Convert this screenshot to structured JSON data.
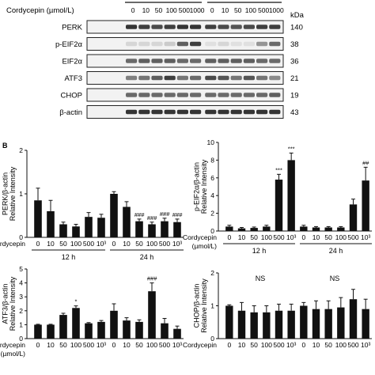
{
  "panel_a": {
    "treatment_label": "Cordycepin (µmol/L)",
    "doses": [
      "0",
      "10",
      "50",
      "100",
      "500",
      "1000",
      "0",
      "10",
      "50",
      "100",
      "500",
      "1000"
    ],
    "kda_label": "kDa",
    "blots": [
      {
        "name": "PERK",
        "kda": "140",
        "intensity": [
          0.85,
          0.8,
          0.75,
          0.8,
          0.85,
          0.85,
          0.8,
          0.75,
          0.7,
          0.75,
          0.8,
          0.8
        ]
      },
      {
        "name": "p-EIF2α",
        "kda": "38",
        "intensity": [
          0.1,
          0.1,
          0.1,
          0.15,
          0.65,
          0.8,
          0.05,
          0.1,
          0.05,
          0.05,
          0.4,
          0.6
        ]
      },
      {
        "name": "EIF2α",
        "kda": "36",
        "intensity": [
          0.6,
          0.65,
          0.65,
          0.65,
          0.6,
          0.6,
          0.65,
          0.65,
          0.65,
          0.65,
          0.6,
          0.6
        ]
      },
      {
        "name": "ATF3",
        "kda": "21",
        "intensity": [
          0.5,
          0.55,
          0.65,
          0.8,
          0.55,
          0.6,
          0.75,
          0.7,
          0.55,
          0.7,
          0.55,
          0.45
        ]
      },
      {
        "name": "CHOP",
        "kda": "19",
        "intensity": [
          0.6,
          0.6,
          0.6,
          0.6,
          0.6,
          0.6,
          0.6,
          0.6,
          0.6,
          0.6,
          0.6,
          0.65
        ]
      },
      {
        "name": "β-actin",
        "kda": "43",
        "intensity": [
          0.85,
          0.85,
          0.85,
          0.85,
          0.85,
          0.85,
          0.85,
          0.85,
          0.85,
          0.85,
          0.85,
          0.85
        ]
      }
    ]
  },
  "panel_b_label": "B",
  "chart_data": [
    {
      "type": "bar",
      "ylabel": "PERK/β-actin Relative Intensity",
      "ylim": [
        0,
        2
      ],
      "yticks": [
        "0",
        "1",
        "2"
      ],
      "categories": [
        "0",
        "10",
        "50",
        "100",
        "500",
        "10³",
        "0",
        "10",
        "50",
        "100",
        "500",
        "10³"
      ],
      "values": [
        0.85,
        0.6,
        0.3,
        0.25,
        0.47,
        0.45,
        1.0,
        0.7,
        0.37,
        0.3,
        0.37,
        0.35
      ],
      "errors": [
        0.28,
        0.25,
        0.05,
        0.05,
        0.1,
        0.08,
        0.05,
        0.12,
        0.05,
        0.05,
        0.07,
        0.07
      ],
      "annotations": [
        "",
        "",
        "",
        "",
        "",
        "",
        "",
        "",
        "###",
        "###",
        "###",
        "###"
      ],
      "cat_label": "Cordycepin",
      "cat_unit": "",
      "groups": [
        "12 h",
        "24 h"
      ]
    },
    {
      "type": "bar",
      "ylabel": "p-EIF2α/β-actin Relative Intensity",
      "ylim": [
        0,
        10
      ],
      "yticks": [
        "0",
        "2",
        "4",
        "6",
        "8",
        "10"
      ],
      "categories": [
        "0",
        "10",
        "50",
        "100",
        "500",
        "10³",
        "0",
        "10",
        "50",
        "100",
        "500",
        "10³"
      ],
      "values": [
        0.5,
        0.3,
        0.35,
        0.5,
        5.8,
        8.0,
        0.5,
        0.4,
        0.4,
        0.4,
        3.0,
        5.7
      ],
      "errors": [
        0.15,
        0.1,
        0.1,
        0.15,
        0.6,
        0.8,
        0.15,
        0.1,
        0.1,
        0.1,
        0.6,
        1.5
      ],
      "annotations": [
        "",
        "",
        "",
        "",
        "***",
        "***",
        "",
        "",
        "",
        "",
        "",
        "##"
      ],
      "cat_label": "Cordycepin",
      "cat_unit": "(µmol/L)",
      "groups": [
        "12 h",
        "24 h"
      ]
    },
    {
      "type": "bar",
      "ylabel": "ATF3/β-actin Relative Intensity",
      "ylim": [
        0,
        5
      ],
      "yticks": [
        "0",
        "1",
        "2",
        "3",
        "4",
        "5"
      ],
      "categories": [
        "0",
        "10",
        "50",
        "100",
        "500",
        "10³",
        "0",
        "10",
        "50",
        "100",
        "500",
        "10³"
      ],
      "values": [
        1.0,
        1.0,
        1.7,
        2.2,
        1.1,
        1.2,
        2.0,
        1.3,
        1.2,
        3.4,
        1.1,
        0.7
      ],
      "errors": [
        0.03,
        0.03,
        0.12,
        0.15,
        0.05,
        0.1,
        0.5,
        0.2,
        0.15,
        0.6,
        0.35,
        0.2
      ],
      "annotations": [
        "",
        "",
        "",
        "*",
        "",
        "",
        "",
        "",
        "",
        "###",
        "",
        ""
      ],
      "cat_label": "Cordycepin",
      "cat_unit": "(µmol/L)",
      "groups": []
    },
    {
      "type": "bar",
      "ylabel": "CHOP/β-actin Relative Intensity",
      "ylim": [
        0,
        2
      ],
      "yticks": [
        "0",
        "1",
        "2"
      ],
      "categories": [
        "0",
        "10",
        "50",
        "100",
        "500",
        "10³",
        "0",
        "10",
        "50",
        "100",
        "500",
        "10³"
      ],
      "values": [
        1.0,
        0.85,
        0.8,
        0.8,
        0.85,
        0.85,
        1.0,
        0.9,
        0.9,
        0.95,
        1.2,
        0.9
      ],
      "errors": [
        0.03,
        0.25,
        0.2,
        0.2,
        0.2,
        0.2,
        0.1,
        0.25,
        0.25,
        0.3,
        0.3,
        0.3
      ],
      "annotations": [
        "",
        "",
        "",
        "",
        "",
        "",
        "",
        "",
        "",
        "",
        "",
        ""
      ],
      "cat_label": "Cordycepin",
      "cat_unit": "",
      "groups": [],
      "ns_labels": [
        "NS",
        "NS"
      ]
    }
  ]
}
